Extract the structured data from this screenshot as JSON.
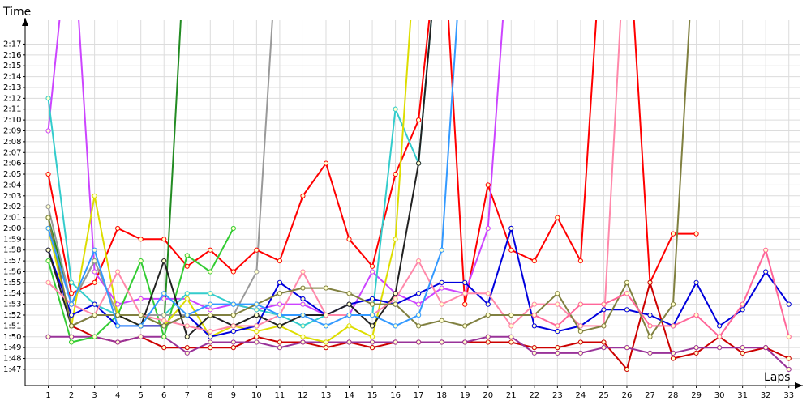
{
  "chart_data": {
    "type": "line",
    "x_label": "Laps",
    "y_label": "Time",
    "x": [
      1,
      2,
      3,
      4,
      5,
      6,
      7,
      8,
      9,
      10,
      11,
      12,
      13,
      14,
      15,
      16,
      17,
      18,
      19,
      20,
      21,
      22,
      23,
      24,
      25,
      26,
      27,
      28,
      29,
      30,
      31,
      32,
      33
    ],
    "xlim": [
      0,
      33.5
    ],
    "ylim": [
      105.5,
      139.2
    ],
    "grid": true,
    "markers": true,
    "xticks": [
      1,
      2,
      3,
      4,
      5,
      6,
      7,
      8,
      9,
      10,
      11,
      12,
      13,
      14,
      15,
      16,
      17,
      18,
      19,
      20,
      21,
      22,
      23,
      24,
      25,
      26,
      27,
      28,
      29,
      30,
      31,
      32,
      33
    ],
    "yticks": [
      {
        "value": 107,
        "label": "1:47"
      },
      {
        "value": 108,
        "label": "1:48"
      },
      {
        "value": 109,
        "label": "1:49"
      },
      {
        "value": 110,
        "label": "1:50"
      },
      {
        "value": 111,
        "label": "1:51"
      },
      {
        "value": 112,
        "label": "1:52"
      },
      {
        "value": 113,
        "label": "1:53"
      },
      {
        "value": 114,
        "label": "1:54"
      },
      {
        "value": 115,
        "label": "1:55"
      },
      {
        "value": 116,
        "label": "1:56"
      },
      {
        "value": 117,
        "label": "1:57"
      },
      {
        "value": 118,
        "label": "1:58"
      },
      {
        "value": 119,
        "label": "1:59"
      },
      {
        "value": 120,
        "label": "2:00"
      },
      {
        "value": 121,
        "label": "2:01"
      },
      {
        "value": 122,
        "label": "2:02"
      },
      {
        "value": 123,
        "label": "2:03"
      },
      {
        "value": 124,
        "label": "2:04"
      },
      {
        "value": 125,
        "label": "2:05"
      },
      {
        "value": 126,
        "label": "2:06"
      },
      {
        "value": 127,
        "label": "2:07"
      },
      {
        "value": 128,
        "label": "2:08"
      },
      {
        "value": 129,
        "label": "2:09"
      },
      {
        "value": 130,
        "label": "2:10"
      },
      {
        "value": 131,
        "label": "2:11"
      },
      {
        "value": 132,
        "label": "2:12"
      },
      {
        "value": 133,
        "label": "2:13"
      },
      {
        "value": 134,
        "label": "2:14"
      },
      {
        "value": 135,
        "label": "2:15"
      },
      {
        "value": 136,
        "label": "2:16"
      },
      {
        "value": 137,
        "label": "2:17"
      }
    ],
    "series": [
      {
        "color": "#ff0000",
        "values": [
          125,
          114,
          115,
          120,
          119,
          119,
          116.5,
          118,
          116,
          118,
          117,
          123,
          126,
          119,
          116.5,
          125,
          130,
          150,
          113,
          124,
          118,
          117,
          121,
          117,
          150,
          150,
          115,
          119.5,
          119.5,
          null,
          null,
          null,
          null
        ]
      },
      {
        "color": "#cc0000",
        "values": [
          null,
          111,
          110,
          109.5,
          110,
          109,
          109,
          109,
          109,
          110,
          109.5,
          109.5,
          109,
          109.5,
          109,
          109.5,
          109.5,
          109.5,
          109.5,
          109.5,
          109.5,
          109,
          109,
          109.5,
          109.5,
          107,
          115,
          108,
          108.5,
          110,
          108.5,
          109,
          108
        ]
      },
      {
        "color": "#993399",
        "values": [
          110,
          110,
          110,
          109.5,
          110,
          110,
          108.5,
          109.5,
          109.5,
          109.5,
          109,
          109.5,
          109.5,
          109.5,
          109.5,
          109.5,
          109.5,
          109.5,
          109.5,
          110,
          110,
          108.5,
          108.5,
          108.5,
          109,
          109,
          108.5,
          108.5,
          109,
          109,
          109,
          109,
          107
        ]
      },
      {
        "color": "#cc44ff",
        "values": [
          129,
          150,
          116,
          113,
          113.5,
          113.5,
          113.5,
          112.5,
          113,
          112.5,
          113,
          113,
          112,
          112,
          116,
          114,
          113,
          114.5,
          114,
          120,
          150,
          null,
          null,
          null,
          null,
          null,
          null,
          null,
          null,
          null,
          null,
          null,
          null
        ]
      },
      {
        "color": "#33cccc",
        "values": [
          132,
          115,
          113,
          112,
          112,
          112,
          114,
          114,
          113,
          112.5,
          112,
          111,
          112,
          112,
          112,
          131,
          126,
          150,
          null,
          null,
          null,
          null,
          null,
          null,
          null,
          null,
          null,
          null,
          null,
          null,
          null,
          null,
          null
        ]
      },
      {
        "color": "#33cc33",
        "values": [
          117,
          109.5,
          110,
          112,
          117,
          110,
          117.5,
          116,
          120,
          null,
          null,
          null,
          null,
          null,
          null,
          null,
          null,
          null,
          null,
          null,
          null,
          null,
          null,
          null,
          null,
          null,
          null,
          null,
          null,
          null,
          null,
          null,
          null
        ]
      },
      {
        "color": "#228b22",
        "values": [
          121,
          113,
          117,
          112,
          112,
          111,
          150,
          null,
          null,
          null,
          null,
          null,
          null,
          null,
          null,
          null,
          null,
          null,
          null,
          null,
          null,
          null,
          null,
          null,
          null,
          null,
          null,
          null,
          null,
          null,
          null,
          null,
          null
        ]
      },
      {
        "color": "#999999",
        "values": [
          122,
          113,
          117,
          112,
          112,
          112,
          112,
          112,
          112,
          116,
          150,
          null,
          null,
          null,
          null,
          null,
          null,
          null,
          null,
          null,
          null,
          null,
          null,
          null,
          null,
          null,
          null,
          null,
          null,
          null,
          null,
          null,
          null
        ]
      },
      {
        "color": "#dddd00",
        "values": [
          120,
          111,
          123,
          112,
          111,
          111,
          113.5,
          110,
          111,
          110.5,
          111,
          110,
          109.5,
          111,
          110,
          119,
          150,
          null,
          null,
          null,
          null,
          null,
          null,
          null,
          null,
          null,
          null,
          null,
          null,
          null,
          null,
          null,
          null
        ]
      },
      {
        "color": "#0000dd",
        "values": [
          118,
          112,
          113,
          111,
          111,
          111,
          112,
          110,
          110.5,
          111,
          115,
          113.5,
          112,
          113,
          113.5,
          113,
          114,
          115,
          115,
          113,
          120,
          111,
          110.5,
          111,
          112.5,
          112.5,
          112,
          111,
          115,
          111,
          112.5,
          116,
          113
        ]
      },
      {
        "color": "#222222",
        "values": [
          118,
          111,
          112,
          112,
          111,
          117,
          110,
          112,
          111,
          112,
          111,
          112,
          112,
          113,
          111,
          114,
          126,
          150,
          null,
          null,
          null,
          null,
          null,
          null,
          null,
          null,
          null,
          null,
          null,
          null,
          null,
          null,
          null
        ]
      },
      {
        "color": "#ff88aa",
        "values": [
          115,
          113,
          112,
          116,
          112,
          111.5,
          111,
          110.5,
          111,
          111,
          112,
          116,
          112,
          112,
          112,
          113.5,
          117,
          113,
          114,
          114,
          111,
          113,
          113,
          111,
          111,
          150,
          null,
          null,
          null,
          null,
          null,
          null,
          null
        ]
      },
      {
        "color": "#808040",
        "values": [
          121,
          111,
          112,
          112,
          112,
          111,
          112,
          112,
          112,
          113,
          114,
          114.5,
          114.5,
          114,
          113,
          113,
          111,
          111.5,
          111,
          112,
          112,
          112,
          114,
          110.5,
          111,
          115,
          110,
          113,
          150,
          null,
          null,
          null,
          null
        ]
      },
      {
        "color": "#3399ff",
        "values": [
          120,
          113,
          118,
          111,
          111,
          114,
          112,
          113,
          113,
          113,
          112,
          112,
          111,
          112,
          112,
          111,
          112,
          118,
          150,
          null,
          null,
          null,
          null,
          null,
          null,
          null,
          null,
          null,
          null,
          null,
          null,
          null,
          null
        ]
      },
      {
        "color": "#ff6699",
        "values": [
          null,
          null,
          null,
          null,
          null,
          null,
          null,
          null,
          null,
          null,
          null,
          null,
          null,
          null,
          null,
          null,
          null,
          null,
          null,
          null,
          null,
          112,
          111,
          113,
          113,
          114,
          111,
          111,
          112,
          110,
          113,
          118,
          110
        ]
      }
    ]
  }
}
